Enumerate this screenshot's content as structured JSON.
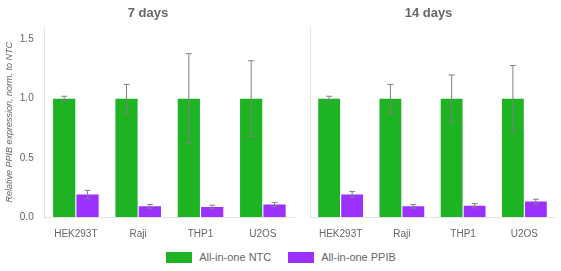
{
  "chart_data": [
    {
      "type": "bar",
      "title": "7 days",
      "categories": [
        "HEK293T",
        "Raji",
        "THP1",
        "U2OS"
      ],
      "ylabel": "Relative PPIB expression, norm. to NTC",
      "series": [
        {
          "name": "All-in-one NTC",
          "color": "#1db322",
          "values": [
            1.0,
            1.0,
            1.0,
            1.0
          ],
          "errors": [
            0.02,
            0.12,
            0.38,
            0.32
          ]
        },
        {
          "name": "All-in-one PPIB",
          "color": "#9b30ff",
          "values": [
            0.19,
            0.09,
            0.085,
            0.105
          ],
          "errors": [
            0.035,
            0.015,
            0.015,
            0.018
          ]
        }
      ],
      "ylim": [
        0,
        1.6
      ],
      "yticks": [
        {
          "value": 0,
          "label": "0.0"
        },
        0.5,
        {
          "value": 1,
          "label": "1.0"
        },
        1.5
      ],
      "grid": false,
      "legend": "bottom"
    },
    {
      "type": "bar",
      "title": "14 days",
      "categories": [
        "HEK293T",
        "Raji",
        "THP1",
        "U2OS"
      ],
      "series": [
        {
          "name": "All-in-one NTC",
          "color": "#1db322",
          "values": [
            1.0,
            1.0,
            1.0,
            1.0
          ],
          "errors": [
            0.02,
            0.12,
            0.2,
            0.28
          ]
        },
        {
          "name": "All-in-one PPIB",
          "color": "#9b30ff",
          "values": [
            0.19,
            0.09,
            0.095,
            0.13
          ],
          "errors": [
            0.025,
            0.015,
            0.018,
            0.02
          ]
        }
      ],
      "ylim": [
        0,
        1.6
      ],
      "yticks": [
        0,
        0.5,
        1,
        1.5
      ],
      "grid": false,
      "legend": "bottom",
      "tick_labels": "x"
    }
  ]
}
